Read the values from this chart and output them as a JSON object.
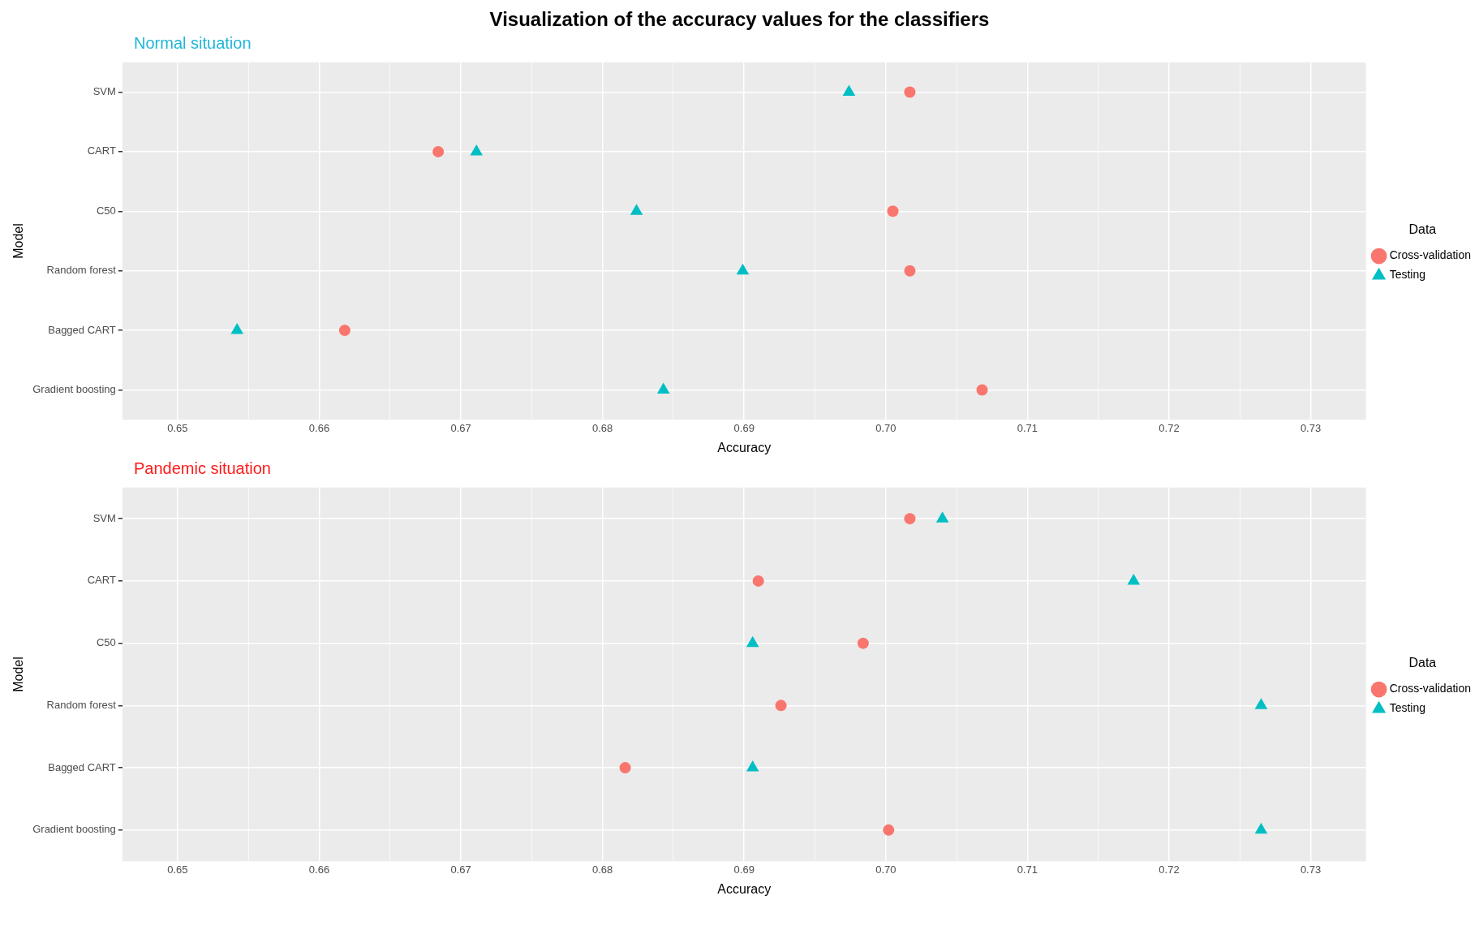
{
  "chart_data": [
    {
      "type": "scatter",
      "title": "Visualization of the accuracy values for the classifiers",
      "subtitle": "Normal situation",
      "xlabel": "Accuracy",
      "ylabel": "Model",
      "orientation": "horizontal",
      "categories": [
        "SVM",
        "CART",
        "C50",
        "Random forest",
        "Bagged CART",
        "Gradient boosting"
      ],
      "series": [
        {
          "name": "Cross-validation",
          "color": "#f8766d",
          "marker": "circle",
          "values": [
            0.7017,
            0.6684,
            0.7005,
            0.7017,
            0.6618,
            0.7068
          ]
        },
        {
          "name": "Testing",
          "color": "#00bfc4",
          "marker": "triangle",
          "values": [
            0.6974,
            0.6711,
            0.6824,
            0.6899,
            0.6542,
            0.6843
          ]
        }
      ],
      "xlim": [
        0.6461,
        0.7339
      ],
      "xticks": [
        {
          "value": 0.65,
          "label": "0.65"
        },
        {
          "value": 0.655,
          "label": null
        },
        {
          "value": 0.66,
          "label": "0.66"
        },
        {
          "value": 0.665,
          "label": null
        },
        {
          "value": 0.67,
          "label": "0.67"
        },
        {
          "value": 0.675,
          "label": null
        },
        {
          "value": 0.68,
          "label": "0.68"
        },
        {
          "value": 0.685,
          "label": null
        },
        {
          "value": 0.69,
          "label": "0.69"
        },
        {
          "value": 0.695,
          "label": null
        },
        {
          "value": 0.7,
          "label": "0.70"
        },
        {
          "value": 0.705,
          "label": null
        },
        {
          "value": 0.71,
          "label": "0.71"
        },
        {
          "value": 0.715,
          "label": null
        },
        {
          "value": 0.72,
          "label": "0.72"
        },
        {
          "value": 0.725,
          "label": null
        },
        {
          "value": 0.73,
          "label": "0.73"
        }
      ],
      "grid": true,
      "legend": "right",
      "legend_title": "Data"
    },
    {
      "type": "scatter",
      "title": "Pandemic situation",
      "xlabel": "Accuracy",
      "ylabel": "Model",
      "orientation": "horizontal",
      "categories": [
        "SVM",
        "CART",
        "C50",
        "Random forest",
        "Bagged CART",
        "Gradient boosting"
      ],
      "series": [
        {
          "name": "Cross-validation",
          "color": "#f8766d",
          "marker": "circle",
          "values": [
            0.7017,
            0.691,
            0.6984,
            0.6926,
            0.6816,
            0.7002
          ]
        },
        {
          "name": "Testing",
          "color": "#00bfc4",
          "marker": "triangle",
          "values": [
            0.704,
            0.7175,
            0.6906,
            0.7265,
            0.6906,
            0.7265
          ]
        }
      ],
      "xlim": [
        0.6461,
        0.7339
      ],
      "xticks": [
        {
          "value": 0.65,
          "label": "0.65"
        },
        {
          "value": 0.655,
          "label": null
        },
        {
          "value": 0.66,
          "label": "0.66"
        },
        {
          "value": 0.665,
          "label": null
        },
        {
          "value": 0.67,
          "label": "0.67"
        },
        {
          "value": 0.675,
          "label": null
        },
        {
          "value": 0.68,
          "label": "0.68"
        },
        {
          "value": 0.685,
          "label": null
        },
        {
          "value": 0.69,
          "label": "0.69"
        },
        {
          "value": 0.695,
          "label": null
        },
        {
          "value": 0.7,
          "label": "0.70"
        },
        {
          "value": 0.705,
          "label": null
        },
        {
          "value": 0.71,
          "label": "0.71"
        },
        {
          "value": 0.715,
          "label": null
        },
        {
          "value": 0.72,
          "label": "0.72"
        },
        {
          "value": 0.725,
          "label": null
        },
        {
          "value": 0.73,
          "label": "0.73"
        }
      ],
      "grid": true,
      "legend": "right",
      "legend_title": "Data"
    }
  ]
}
